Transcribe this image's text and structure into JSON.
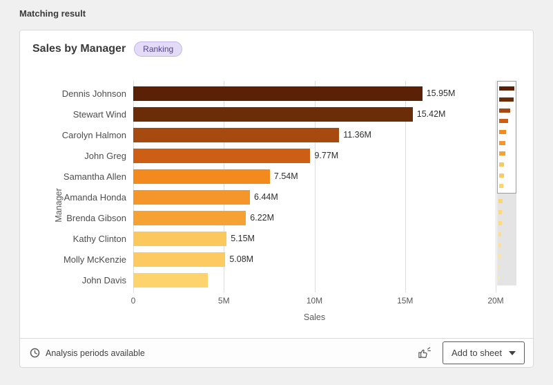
{
  "page": {
    "title": "Matching result"
  },
  "card": {
    "title": "Sales by Manager",
    "badge": "Ranking"
  },
  "chart_data": {
    "type": "bar",
    "orientation": "horizontal",
    "title": "Sales by Manager",
    "xlabel": "Sales",
    "ylabel": "Manager",
    "xlim_millions": [
      0,
      20
    ],
    "xticks": [
      "0",
      "5M",
      "10M",
      "15M",
      "20M"
    ],
    "grid": true,
    "legend": false,
    "categories": [
      "Dennis Johnson",
      "Stewart Wind",
      "Carolyn Halmon",
      "John Greg",
      "Samantha Allen",
      "Amanda Honda",
      "Brenda Gibson",
      "Kathy Clinton",
      "Molly McKenzie",
      "John Davis"
    ],
    "values_millions": [
      15.95,
      15.42,
      11.36,
      9.77,
      7.54,
      6.44,
      6.22,
      5.15,
      5.08,
      4.1
    ],
    "value_labels": [
      "15.95M",
      "15.42M",
      "11.36M",
      "9.77M",
      "7.54M",
      "6.44M",
      "6.22M",
      "5.15M",
      "5.08M",
      ""
    ],
    "bar_colors": [
      "#5a2107",
      "#6b2d08",
      "#a64a0f",
      "#cc5f13",
      "#f28a1e",
      "#f4962a",
      "#f5a133",
      "#fbc85e",
      "#fcca60",
      "#fdd36e"
    ],
    "minimap": {
      "window_count": 10,
      "max_millions": 15.95,
      "values_millions": [
        15.95,
        15.42,
        11.36,
        9.77,
        7.54,
        6.44,
        6.22,
        5.15,
        5.08,
        4.1,
        3.9,
        3.6,
        3.2,
        2.8,
        2.4,
        2.0,
        1.6,
        1.1
      ],
      "colors": [
        "#5a2107",
        "#6b2d08",
        "#a64a0f",
        "#cc5f13",
        "#f28a1e",
        "#f4962a",
        "#f5a133",
        "#fbc85e",
        "#fcca60",
        "#fdd36e",
        "#fdd572",
        "#fdd87a",
        "#fdda82",
        "#fddd8a",
        "#fde092",
        "#fee39a",
        "#fee5a2",
        "#fee8aa"
      ]
    }
  },
  "footer": {
    "status": "Analysis periods available",
    "add_to_sheet": "Add to sheet"
  },
  "colors": {
    "badge_bg": "#e4dcf7",
    "badge_text": "#52428c",
    "grid_line": "#dcdcdc",
    "axis_text": "#595959"
  }
}
